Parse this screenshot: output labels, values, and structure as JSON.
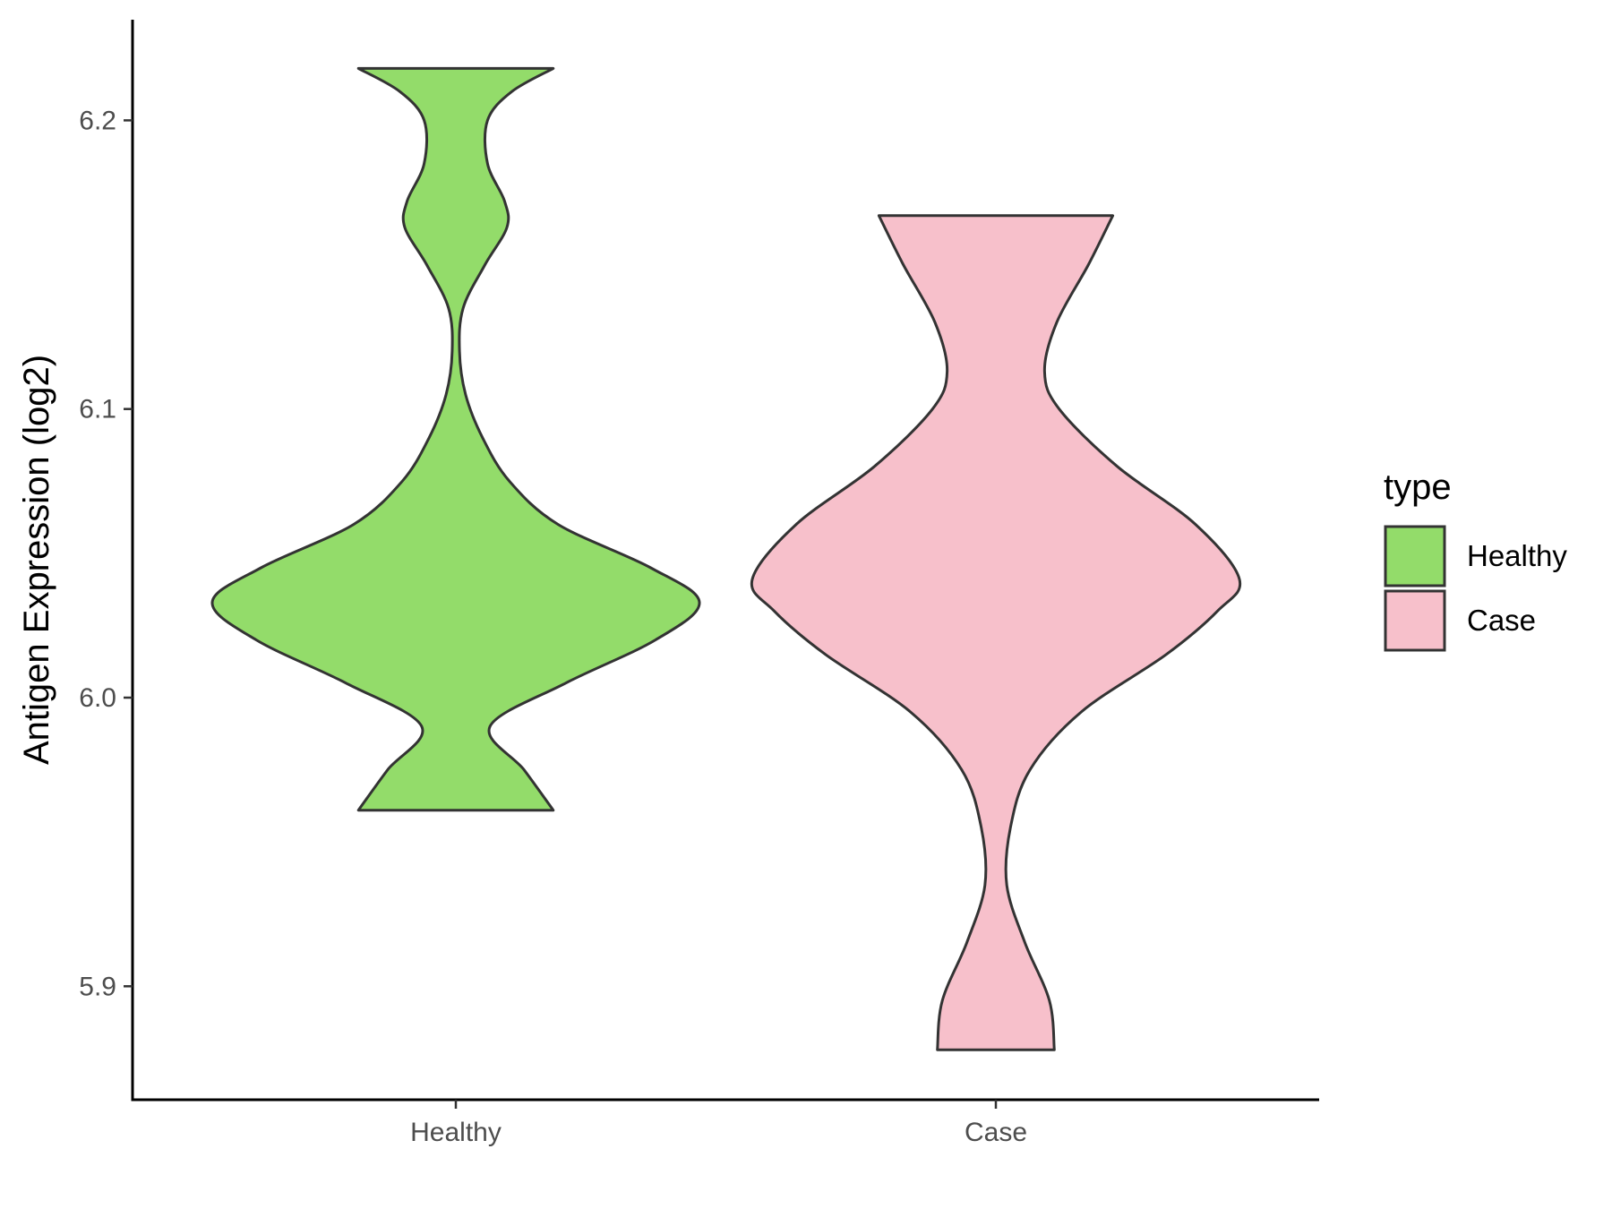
{
  "chart_data": {
    "type": "violin",
    "title": "",
    "xlabel": "",
    "ylabel": "Antigen Expression (log2)",
    "categories": [
      "Healthy",
      "Case"
    ],
    "ylim": [
      5.86,
      6.235
    ],
    "yticks": [
      5.9,
      6.0,
      6.1,
      6.2
    ],
    "ytick_labels": [
      "5.9",
      "6.0",
      "6.1",
      "6.2"
    ],
    "grid": false,
    "legend": {
      "title": "type",
      "position": "right",
      "entries": [
        {
          "label": "Healthy",
          "color": "#93dc6a"
        },
        {
          "label": "Case",
          "color": "#f7c0cb"
        }
      ]
    },
    "series": [
      {
        "name": "Healthy",
        "color": "#93dc6a",
        "y_min": 5.961,
        "y_max": 6.218,
        "density_profile": [
          {
            "y": 5.961,
            "w": 0.4
          },
          {
            "y": 5.975,
            "w": 0.28
          },
          {
            "y": 5.99,
            "w": 0.14
          },
          {
            "y": 6.005,
            "w": 0.45
          },
          {
            "y": 6.02,
            "w": 0.82
          },
          {
            "y": 6.033,
            "w": 1.0
          },
          {
            "y": 6.045,
            "w": 0.8
          },
          {
            "y": 6.06,
            "w": 0.42
          },
          {
            "y": 6.075,
            "w": 0.22
          },
          {
            "y": 6.09,
            "w": 0.11
          },
          {
            "y": 6.105,
            "w": 0.04
          },
          {
            "y": 6.12,
            "w": 0.015
          },
          {
            "y": 6.135,
            "w": 0.03
          },
          {
            "y": 6.15,
            "w": 0.12
          },
          {
            "y": 6.163,
            "w": 0.21
          },
          {
            "y": 6.172,
            "w": 0.2
          },
          {
            "y": 6.185,
            "w": 0.13
          },
          {
            "y": 6.2,
            "w": 0.13
          },
          {
            "y": 6.21,
            "w": 0.23
          },
          {
            "y": 6.218,
            "w": 0.4
          }
        ]
      },
      {
        "name": "Case",
        "color": "#f7c0cb",
        "y_min": 5.878,
        "y_max": 6.167,
        "density_profile": [
          {
            "y": 5.878,
            "w": 0.24
          },
          {
            "y": 5.895,
            "w": 0.22
          },
          {
            "y": 5.915,
            "w": 0.12
          },
          {
            "y": 5.935,
            "w": 0.045
          },
          {
            "y": 5.955,
            "w": 0.06
          },
          {
            "y": 5.975,
            "w": 0.14
          },
          {
            "y": 5.995,
            "w": 0.35
          },
          {
            "y": 6.015,
            "w": 0.7
          },
          {
            "y": 6.03,
            "w": 0.91
          },
          {
            "y": 6.041,
            "w": 1.0
          },
          {
            "y": 6.06,
            "w": 0.82
          },
          {
            "y": 6.08,
            "w": 0.5
          },
          {
            "y": 6.1,
            "w": 0.26
          },
          {
            "y": 6.113,
            "w": 0.2
          },
          {
            "y": 6.13,
            "w": 0.25
          },
          {
            "y": 6.15,
            "w": 0.38
          },
          {
            "y": 6.167,
            "w": 0.48
          }
        ]
      }
    ]
  }
}
